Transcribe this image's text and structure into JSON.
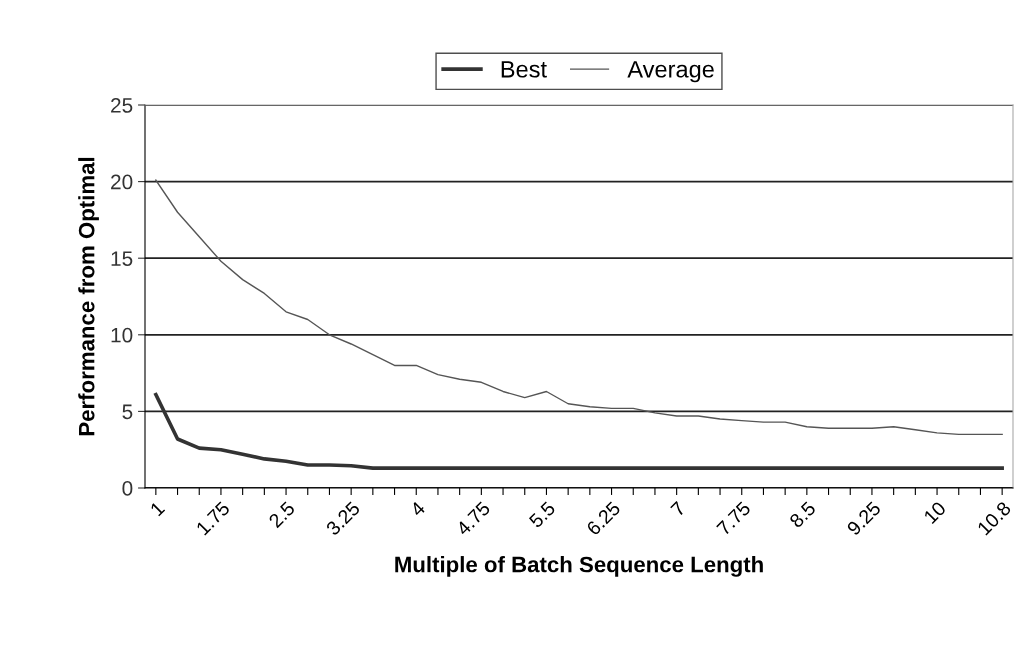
{
  "chart_data": {
    "type": "line",
    "xlabel": "Multiple of Batch Sequence Length",
    "ylabel": "Performance from Optimal",
    "categories": [
      "1",
      null,
      null,
      "1.75",
      null,
      null,
      "2.5",
      null,
      null,
      "3.25",
      null,
      null,
      "4",
      null,
      null,
      "4.75",
      null,
      null,
      "5.5",
      null,
      null,
      "6.25",
      null,
      null,
      "7",
      null,
      null,
      "7.75",
      null,
      null,
      "8.5",
      null,
      null,
      "9.25",
      null,
      null,
      "10",
      null,
      null,
      "10.8"
    ],
    "series": [
      {
        "name": "Best",
        "color": "#333333",
        "values": [
          6.1,
          3.2,
          2.6,
          2.5,
          2.2,
          1.9,
          1.75,
          1.5,
          1.5,
          1.45,
          1.3,
          1.3,
          1.3,
          1.3,
          1.3,
          1.3,
          1.3,
          1.3,
          1.3,
          1.3,
          1.3,
          1.3,
          1.3,
          1.3,
          1.3,
          1.3,
          1.3,
          1.3,
          1.3,
          1.3,
          1.3,
          1.3,
          1.3,
          1.3,
          1.3,
          1.3,
          1.3,
          1.3,
          1.3,
          1.3
        ]
      },
      {
        "name": "Average",
        "color": "#555555",
        "values": [
          20.1,
          18.0,
          16.4,
          14.8,
          13.6,
          12.7,
          11.5,
          11.0,
          10.0,
          9.4,
          8.7,
          8.0,
          8.0,
          7.4,
          7.1,
          6.9,
          6.3,
          5.9,
          6.3,
          5.5,
          5.3,
          5.2,
          5.2,
          4.9,
          4.7,
          4.7,
          4.5,
          4.4,
          4.3,
          4.3,
          4.0,
          3.9,
          3.9,
          3.9,
          4.0,
          3.8,
          3.6,
          3.5,
          3.5,
          3.5
        ]
      }
    ],
    "ylim": [
      0,
      25
    ],
    "yticks": [
      0,
      5,
      10,
      15,
      20,
      25
    ],
    "grid": "y",
    "legend": "top",
    "marker": "none",
    "line_style": "solid"
  }
}
